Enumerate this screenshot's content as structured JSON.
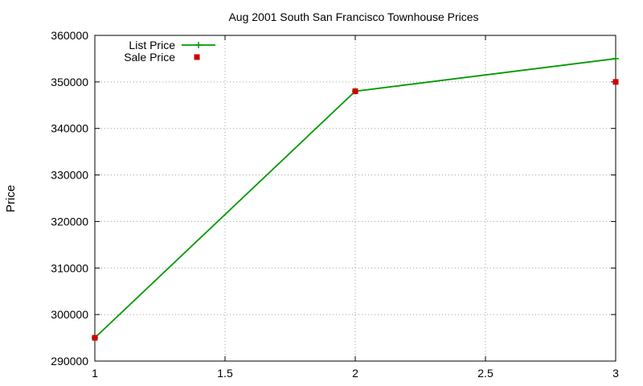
{
  "chart_data": {
    "type": "line",
    "title": "Aug 2001 South San Francisco Townhouse Prices",
    "xlabel": "",
    "ylabel": "Price",
    "xlim": [
      1,
      3
    ],
    "ylim": [
      290000,
      360000
    ],
    "x_ticks": [
      1,
      1.5,
      2,
      2.5,
      3
    ],
    "y_ticks": [
      290000,
      300000,
      310000,
      320000,
      330000,
      340000,
      350000,
      360000
    ],
    "grid": true,
    "legend_position": "top-left",
    "series": [
      {
        "name": "List Price",
        "style": "line-points",
        "marker": "plus",
        "color": "#009900",
        "x": [
          1,
          2,
          3
        ],
        "y": [
          295000,
          348000,
          355000
        ]
      },
      {
        "name": "Sale Price",
        "style": "points",
        "marker": "square",
        "color": "#cc0000",
        "x": [
          1,
          2,
          3
        ],
        "y": [
          295000,
          348000,
          350000
        ]
      }
    ]
  }
}
